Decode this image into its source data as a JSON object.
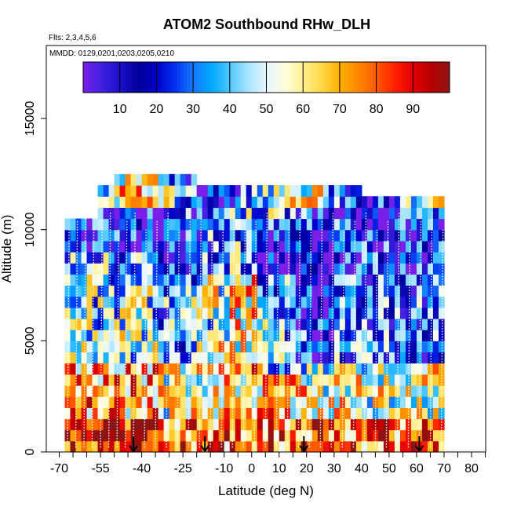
{
  "chart_data": {
    "type": "heatmap",
    "title": "ATOM2 Southbound RHw_DLH",
    "flights_note": "Flts: 2,3,4,5,6",
    "dates_note": "MMDD: 0129,0201,0203,0205,0210",
    "xlabel": "Latitude (deg N)",
    "ylabel": "Altitude (m)",
    "xlim": [
      -72,
      88
    ],
    "ylim": [
      0,
      17500
    ],
    "x_ticks": [
      -70,
      -65,
      -60,
      -55,
      -50,
      -45,
      -40,
      -35,
      -30,
      -25,
      -20,
      -15,
      -10,
      -5,
      0,
      5,
      10,
      15,
      20,
      25,
      30,
      35,
      40,
      45,
      50,
      55,
      60,
      65,
      70,
      75,
      80,
      85
    ],
    "x_tick_labels": [
      "-70",
      "-55",
      "-40",
      "-25",
      "-10",
      "0",
      "10",
      "20",
      "30",
      "40",
      "50",
      "60",
      "70",
      "80"
    ],
    "x_tick_label_values": [
      -70,
      -55,
      -40,
      -25,
      -10,
      0,
      10,
      20,
      30,
      40,
      50,
      60,
      70,
      80
    ],
    "y_ticks": [
      0,
      5000,
      10000,
      15000
    ],
    "y_tick_labels": [
      "0",
      "5000",
      "10000",
      "15000"
    ],
    "colorbar": {
      "range": [
        0,
        100
      ],
      "ticks": [
        10,
        20,
        30,
        40,
        50,
        60,
        70,
        80,
        90
      ],
      "tick_labels": [
        "10",
        "20",
        "30",
        "40",
        "50",
        "60",
        "70",
        "80",
        "90"
      ],
      "colors": [
        "#7a1fe8",
        "#4020e0",
        "#1a10cc",
        "#000099",
        "#0000c8",
        "#0030f0",
        "#1878ff",
        "#00a8ff",
        "#50c8ff",
        "#a8e4ff",
        "#e6f6ff",
        "#fffde0",
        "#fff090",
        "#ffd84a",
        "#ffb000",
        "#ff8800",
        "#ff5a00",
        "#ff2000",
        "#e00000",
        "#b80000",
        "#8c1414"
      ]
    },
    "bin_size": {
      "lat": 2,
      "alt_m": 500
    },
    "lat_extent": [
      -68,
      70
    ],
    "alt_profile_caps": [
      [
        -68,
        10500
      ],
      [
        -60,
        10500
      ],
      [
        -56,
        12000
      ],
      [
        -50,
        12500
      ],
      [
        -22,
        12500
      ],
      [
        -20,
        12000
      ],
      [
        36,
        12000
      ],
      [
        40,
        11500
      ],
      [
        70,
        11500
      ]
    ],
    "profile_latitudes": [
      -67,
      -64,
      -61,
      -58,
      -55,
      -52,
      -49,
      -46,
      -43,
      -39,
      -35,
      -31,
      -27,
      -23,
      -19,
      -15,
      -11,
      -7,
      -3,
      1,
      5,
      9,
      13,
      17,
      21,
      25,
      29,
      33,
      37,
      41,
      45,
      49,
      53,
      57,
      61,
      65,
      69
    ],
    "arrow_latitudes": [
      -43,
      -17,
      19,
      61
    ]
  }
}
